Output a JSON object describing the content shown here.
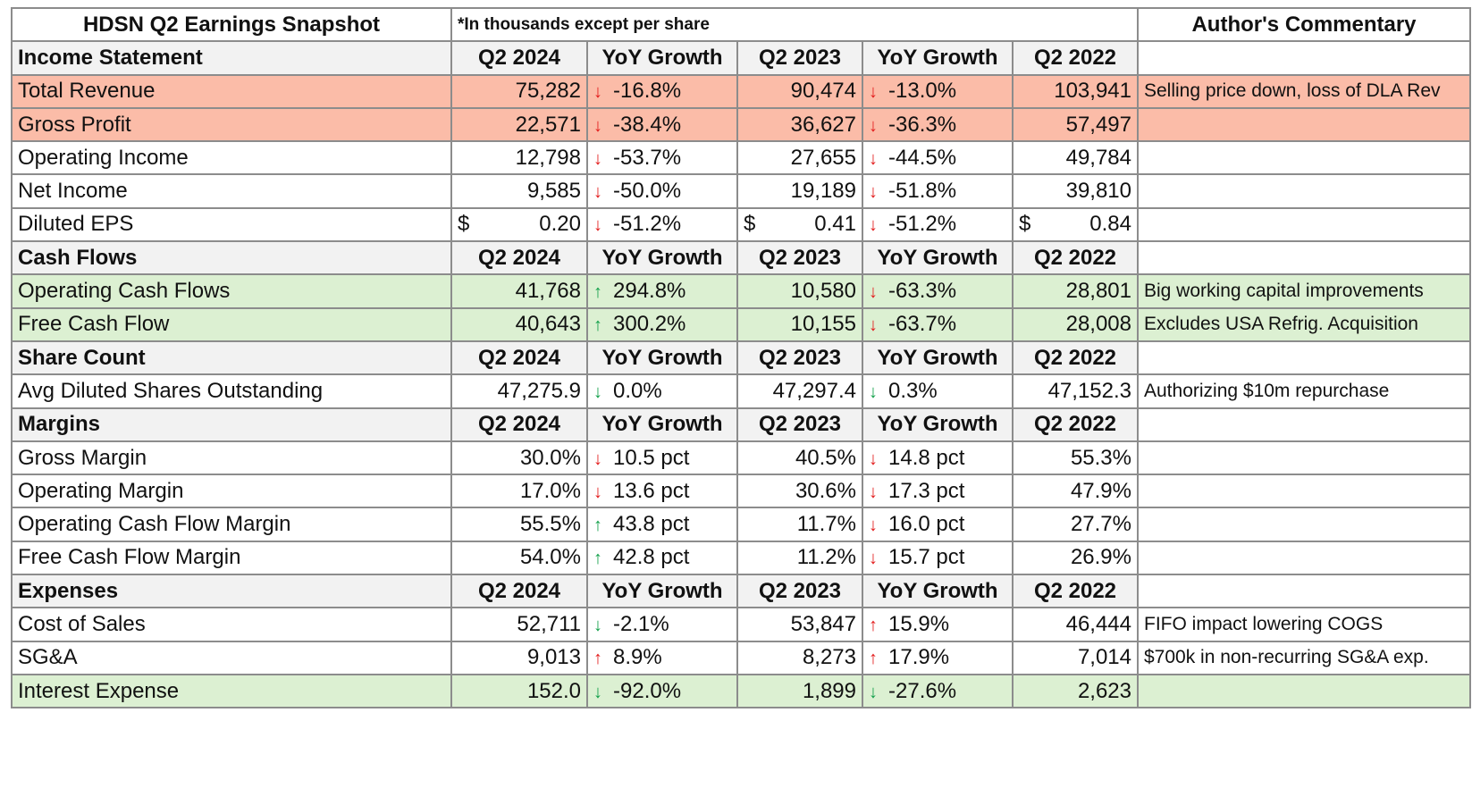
{
  "title": "HDSN Q2 Earnings Snapshot",
  "units_note": "*In thousands except per share",
  "commentary_header": "Author's Commentary",
  "colors": {
    "red_row": "#fbbca8",
    "green_row": "#dcf0d2",
    "section_row": "#f2f2f2",
    "arrow_down": "#e31b1b",
    "arrow_up": "#12a04a"
  },
  "sections": [
    {
      "name": "Income Statement",
      "columns": [
        "Q2 2024",
        "YoY Growth",
        "Q2 2023",
        "YoY Growth",
        "Q2 2022"
      ],
      "rows": [
        {
          "label": "Total Revenue",
          "highlight": "red",
          "q2_2024": "75,282",
          "g1_dir": "down",
          "g1": "-16.8%",
          "q2_2023": "90,474",
          "g2_dir": "down",
          "g2": "-13.0%",
          "q2_2022": "103,941",
          "comment": "Selling price down, loss of DLA Rev"
        },
        {
          "label": "Gross Profit",
          "highlight": "red",
          "q2_2024": "22,571",
          "g1_dir": "down",
          "g1": "-38.4%",
          "q2_2023": "36,627",
          "g2_dir": "down",
          "g2": "-36.3%",
          "q2_2022": "57,497",
          "comment": ""
        },
        {
          "label": "Operating Income",
          "highlight": "",
          "q2_2024": "12,798",
          "g1_dir": "down",
          "g1": "-53.7%",
          "q2_2023": "27,655",
          "g2_dir": "down",
          "g2": "-44.5%",
          "q2_2022": "49,784",
          "comment": ""
        },
        {
          "label": "Net Income",
          "highlight": "",
          "q2_2024": "9,585",
          "g1_dir": "down",
          "g1": "-50.0%",
          "q2_2023": "19,189",
          "g2_dir": "down",
          "g2": "-51.8%",
          "q2_2022": "39,810",
          "comment": ""
        },
        {
          "label": "Diluted EPS",
          "highlight": "",
          "currency": "$",
          "q2_2024": "0.20",
          "g1_dir": "down",
          "g1": "-51.2%",
          "q2_2023": "0.41",
          "g2_dir": "down",
          "g2": "-51.2%",
          "q2_2022": "0.84",
          "comment": ""
        }
      ]
    },
    {
      "name": "Cash Flows",
      "columns": [
        "Q2 2024",
        "YoY Growth",
        "Q2 2023",
        "YoY Growth",
        "Q2 2022"
      ],
      "rows": [
        {
          "label": "Operating Cash Flows",
          "highlight": "green",
          "q2_2024": "41,768",
          "g1_dir": "up",
          "g1": "294.8%",
          "q2_2023": "10,580",
          "g2_dir": "down",
          "g2": "-63.3%",
          "q2_2022": "28,801",
          "comment": "Big working capital improvements"
        },
        {
          "label": "Free Cash Flow",
          "highlight": "green",
          "q2_2024": "40,643",
          "g1_dir": "up",
          "g1": "300.2%",
          "q2_2023": "10,155",
          "g2_dir": "down",
          "g2": "-63.7%",
          "q2_2022": "28,008",
          "comment": "Excludes USA Refrig. Acquisition"
        }
      ]
    },
    {
      "name": "Share Count",
      "columns": [
        "Q2 2024",
        "YoY Growth",
        "Q2 2023",
        "YoY Growth",
        "Q2 2022"
      ],
      "rows": [
        {
          "label": "Avg Diluted Shares Outstanding",
          "highlight": "",
          "q2_2024": "47,275.9",
          "g1_dir": "down-green",
          "g1": "0.0%",
          "q2_2023": "47,297.4",
          "g2_dir": "down-green",
          "g2": "0.3%",
          "q2_2022": "47,152.3",
          "comment": "Authorizing $10m repurchase"
        }
      ]
    },
    {
      "name": "Margins",
      "columns": [
        "Q2 2024",
        "YoY Growth",
        "Q2 2023",
        "YoY Growth",
        "Q2 2022"
      ],
      "rows": [
        {
          "label": "Gross Margin",
          "highlight": "",
          "q2_2024": "30.0%",
          "g1_dir": "down",
          "g1": "10.5 pct",
          "q2_2023": "40.5%",
          "g2_dir": "down",
          "g2": "14.8 pct",
          "q2_2022": "55.3%",
          "comment": ""
        },
        {
          "label": "Operating Margin",
          "highlight": "",
          "q2_2024": "17.0%",
          "g1_dir": "down",
          "g1": "13.6 pct",
          "q2_2023": "30.6%",
          "g2_dir": "down",
          "g2": "17.3 pct",
          "q2_2022": "47.9%",
          "comment": ""
        },
        {
          "label": "Operating Cash Flow Margin",
          "highlight": "",
          "q2_2024": "55.5%",
          "g1_dir": "up",
          "g1": "43.8 pct",
          "q2_2023": "11.7%",
          "g2_dir": "down",
          "g2": "16.0 pct",
          "q2_2022": "27.7%",
          "comment": ""
        },
        {
          "label": "Free Cash Flow Margin",
          "highlight": "",
          "q2_2024": "54.0%",
          "g1_dir": "up",
          "g1": "42.8 pct",
          "q2_2023": "11.2%",
          "g2_dir": "down",
          "g2": "15.7 pct",
          "q2_2022": "26.9%",
          "comment": ""
        }
      ]
    },
    {
      "name": "Expenses",
      "columns": [
        "Q2 2024",
        "YoY Growth",
        "Q2 2023",
        "YoY Growth",
        "Q2 2022"
      ],
      "rows": [
        {
          "label": "Cost of Sales",
          "highlight": "",
          "q2_2024": "52,711",
          "g1_dir": "down-green",
          "g1": "-2.1%",
          "q2_2023": "53,847",
          "g2_dir": "up-red",
          "g2": "15.9%",
          "q2_2022": "46,444",
          "comment": "FIFO impact lowering COGS"
        },
        {
          "label": "SG&A",
          "highlight": "",
          "q2_2024": "9,013",
          "g1_dir": "up-red",
          "g1": "8.9%",
          "q2_2023": "8,273",
          "g2_dir": "up-red",
          "g2": "17.9%",
          "q2_2022": "7,014",
          "comment": "$700k in non-recurring SG&A exp."
        },
        {
          "label": "Interest Expense",
          "highlight": "green",
          "q2_2024": "152.0",
          "g1_dir": "down-green",
          "g1": "-92.0%",
          "q2_2023": "1,899",
          "g2_dir": "down-green",
          "g2": "-27.6%",
          "q2_2022": "2,623",
          "comment": ""
        }
      ]
    }
  ]
}
